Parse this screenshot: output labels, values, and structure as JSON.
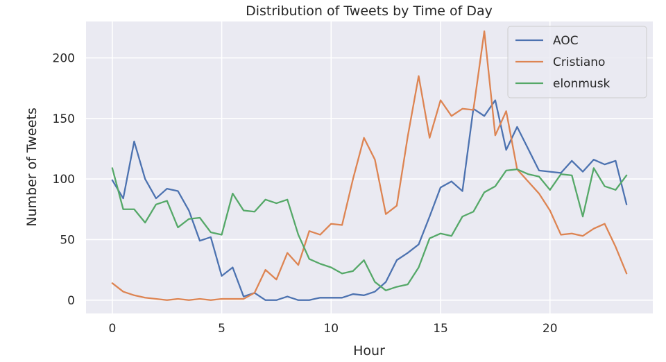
{
  "chart_data": {
    "type": "line",
    "title": "Distribution of Tweets by Time of Day",
    "xlabel": "Hour",
    "ylabel": "Number of Tweets",
    "xlim": [
      -1.2,
      24.7
    ],
    "ylim": [
      -11,
      230
    ],
    "xticks": [
      0,
      5,
      10,
      15,
      20
    ],
    "yticks": [
      0,
      50,
      100,
      150,
      200
    ],
    "grid": true,
    "legend_position": "top-right",
    "x": [
      0,
      0.5,
      1,
      1.5,
      2,
      2.5,
      3,
      3.5,
      4,
      4.5,
      5,
      5.5,
      6,
      6.5,
      7,
      7.5,
      8,
      8.5,
      9,
      9.5,
      10,
      10.5,
      11,
      11.5,
      12,
      12.5,
      13,
      13.5,
      14,
      14.5,
      15,
      15.5,
      16,
      16.5,
      17,
      17.5,
      18,
      18.5,
      19,
      19.5,
      20,
      20.5,
      21,
      21.5,
      22,
      22.5,
      23,
      23.5
    ],
    "series": [
      {
        "name": "AOC",
        "color": "#4c72b0",
        "values": [
          99,
          84,
          131,
          100,
          84,
          92,
          90,
          74,
          49,
          52,
          20,
          27,
          3,
          6,
          0,
          0,
          3,
          0,
          0,
          2,
          2,
          2,
          5,
          4,
          7,
          15,
          33,
          39,
          46,
          69,
          93,
          98,
          90,
          158,
          152,
          165,
          124,
          143,
          125,
          107,
          106,
          105,
          115,
          106,
          116,
          112,
          115,
          79
        ]
      },
      {
        "name": "Cristiano",
        "color": "#dd8452",
        "values": [
          14,
          7,
          4,
          2,
          1,
          0,
          1,
          0,
          1,
          0,
          1,
          1,
          1,
          6,
          25,
          17,
          39,
          29,
          57,
          54,
          63,
          62,
          100,
          134,
          116,
          71,
          78,
          135,
          185,
          134,
          165,
          152,
          158,
          157,
          222,
          136,
          156,
          108,
          98,
          88,
          74,
          54,
          55,
          53,
          59,
          63,
          44,
          22
        ]
      },
      {
        "name": "elonmusk",
        "color": "#55a868",
        "values": [
          109,
          75,
          75,
          64,
          79,
          82,
          60,
          67,
          68,
          56,
          54,
          88,
          74,
          73,
          83,
          80,
          83,
          54,
          34,
          30,
          27,
          22,
          24,
          33,
          15,
          8,
          11,
          13,
          27,
          51,
          55,
          53,
          69,
          73,
          89,
          94,
          107,
          108,
          104,
          102,
          91,
          104,
          103,
          69,
          109,
          94,
          91,
          103
        ]
      }
    ]
  }
}
